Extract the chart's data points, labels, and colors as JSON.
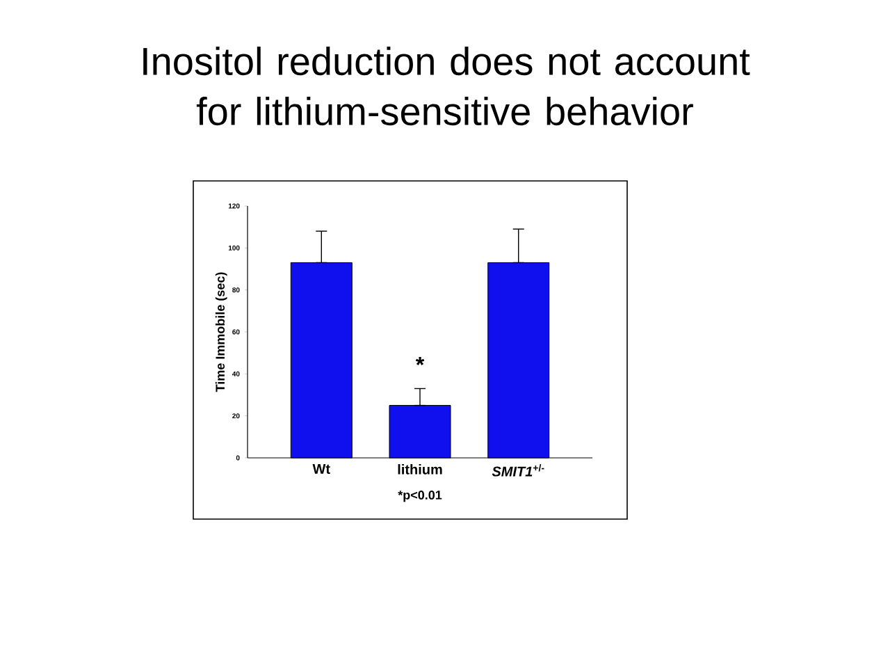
{
  "chart_data": {
    "type": "bar",
    "title": "Inositol reduction does not account for lithium-sensitive behavior",
    "ylabel": "Time Immobile (sec)",
    "categories": [
      "Wt",
      "lithium",
      "*SMIT1*$^{+/-}$"
    ],
    "values": [
      93,
      25,
      93
    ],
    "errors": [
      [
        93,
        108
      ],
      [
        25,
        33
      ],
      [
        93,
        109
      ]
    ],
    "color": "#1010ee",
    "ylim": [
      0,
      120
    ],
    "yticks": [
      0,
      20,
      40,
      60,
      80,
      100,
      120
    ],
    "annotations": [
      "*",
      "*p<0.01"
    ]
  }
}
